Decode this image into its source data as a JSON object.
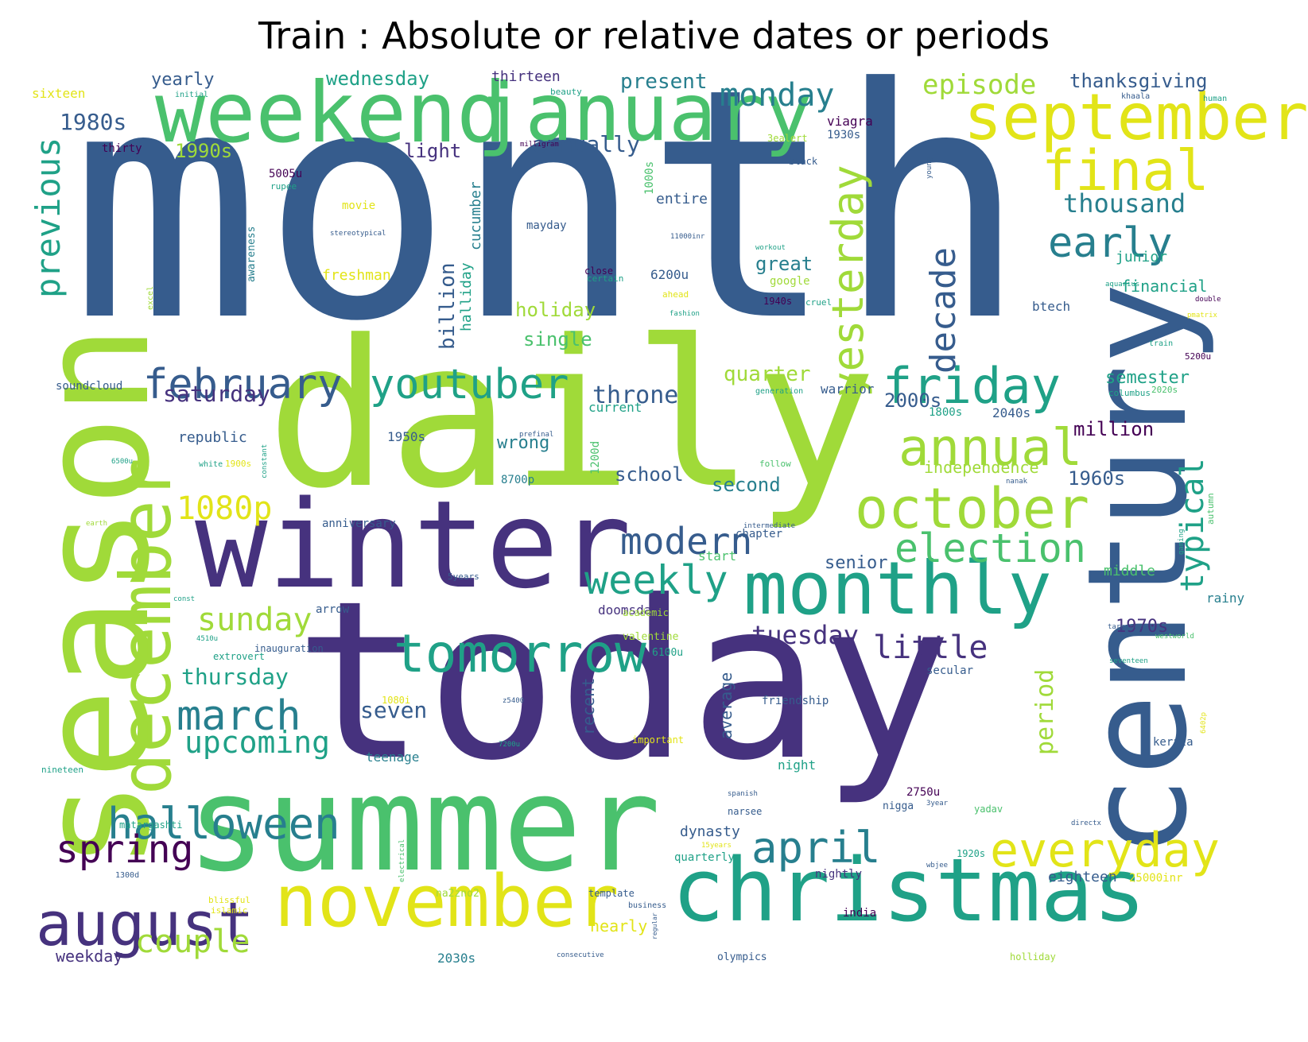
{
  "title": "Train : Absolute or relative dates or periods",
  "palette": {
    "purple": "#46327e",
    "darkblue": "#365c8d",
    "blue": "#277f8e",
    "teal": "#1fa187",
    "green": "#4ac16d",
    "lime": "#a0da39",
    "yellow": "#e2e418",
    "dark": "#440154"
  },
  "words": [
    {
      "t": "month",
      "c": "darkblue"
    },
    {
      "t": "daily",
      "c": "lime"
    },
    {
      "t": "today",
      "c": "purple"
    },
    {
      "t": "season",
      "c": "lime"
    },
    {
      "t": "summer",
      "c": "green"
    },
    {
      "t": "century",
      "c": "darkblue"
    },
    {
      "t": "winter",
      "c": "purple"
    },
    {
      "t": "weekend",
      "c": "green"
    },
    {
      "t": "christmas",
      "c": "teal"
    },
    {
      "t": "january",
      "c": "green"
    },
    {
      "t": "september",
      "c": "yellow"
    },
    {
      "t": "december",
      "c": "lime"
    },
    {
      "t": "november",
      "c": "yellow"
    },
    {
      "t": "monthly",
      "c": "teal"
    },
    {
      "t": "august",
      "c": "purple"
    },
    {
      "t": "tomorrow",
      "c": "teal"
    },
    {
      "t": "october",
      "c": "lime"
    },
    {
      "t": "february",
      "c": "darkblue"
    },
    {
      "t": "youtuber",
      "c": "teal"
    },
    {
      "t": "friday",
      "c": "teal"
    },
    {
      "t": "annual",
      "c": "lime"
    },
    {
      "t": "final",
      "c": "yellow"
    },
    {
      "t": "everyday",
      "c": "yellow"
    },
    {
      "t": "yesterday",
      "c": "lime"
    },
    {
      "t": "halloween",
      "c": "blue"
    },
    {
      "t": "election",
      "c": "green"
    },
    {
      "t": "decade",
      "c": "darkblue"
    },
    {
      "t": "previous",
      "c": "teal"
    },
    {
      "t": "early",
      "c": "blue"
    },
    {
      "t": "april",
      "c": "blue"
    },
    {
      "t": "march",
      "c": "blue"
    },
    {
      "t": "spring",
      "c": "dark"
    },
    {
      "t": "modern",
      "c": "darkblue"
    },
    {
      "t": "weekly",
      "c": "teal"
    },
    {
      "t": "1080p",
      "c": "yellow"
    },
    {
      "t": "upcoming",
      "c": "teal"
    },
    {
      "t": "sunday",
      "c": "lime"
    },
    {
      "t": "couple",
      "c": "lime"
    },
    {
      "t": "little",
      "c": "purple"
    },
    {
      "t": "typical",
      "c": "teal"
    },
    {
      "t": "monday",
      "c": "blue"
    },
    {
      "t": "thousand",
      "c": "blue"
    },
    {
      "t": "episode",
      "c": "lime"
    },
    {
      "t": "1980s",
      "c": "darkblue"
    },
    {
      "t": "tuesday",
      "c": "purple"
    },
    {
      "t": "period",
      "c": "lime"
    },
    {
      "t": "throne",
      "c": "darkblue"
    },
    {
      "t": "saturday",
      "c": "purple"
    },
    {
      "t": "thursday",
      "c": "teal"
    },
    {
      "t": "seven",
      "c": "darkblue"
    },
    {
      "t": "annually",
      "c": "darkblue"
    },
    {
      "t": "thanksgiving",
      "c": "darkblue"
    },
    {
      "t": "present",
      "c": "blue"
    },
    {
      "t": "quarter",
      "c": "lime"
    },
    {
      "t": "wednesday",
      "c": "teal"
    },
    {
      "t": "2000s",
      "c": "darkblue"
    },
    {
      "t": "semester",
      "c": "teal"
    },
    {
      "t": "million",
      "c": "dark"
    },
    {
      "t": "1960s",
      "c": "darkblue"
    },
    {
      "t": "1970s",
      "c": "purple"
    },
    {
      "t": "holiday",
      "c": "lime"
    },
    {
      "t": "single",
      "c": "green"
    },
    {
      "t": "billion",
      "c": "darkblue"
    },
    {
      "t": "school",
      "c": "darkblue"
    },
    {
      "t": "second",
      "c": "blue"
    },
    {
      "t": "yearly",
      "c": "darkblue"
    },
    {
      "t": "1990s",
      "c": "lime"
    },
    {
      "t": "light",
      "c": "purple"
    },
    {
      "t": "great",
      "c": "blue"
    },
    {
      "t": "senior",
      "c": "darkblue"
    },
    {
      "t": "wrong",
      "c": "blue"
    },
    {
      "t": "financial",
      "c": "teal"
    },
    {
      "t": "thirteen",
      "c": "purple"
    },
    {
      "t": "independence",
      "c": "lime"
    },
    {
      "t": "nearly",
      "c": "yellow"
    },
    {
      "t": "weekday",
      "c": "purple"
    },
    {
      "t": "dynasty",
      "c": "darkblue"
    },
    {
      "t": "eighteen",
      "c": "darkblue"
    },
    {
      "t": "average",
      "c": "darkblue"
    },
    {
      "t": "recent",
      "c": "darkblue"
    },
    {
      "t": "cucumber",
      "c": "blue"
    },
    {
      "t": "republic",
      "c": "darkblue"
    },
    {
      "t": "freshman",
      "c": "yellow"
    },
    {
      "t": "1950s",
      "c": "darkblue"
    },
    {
      "t": "2030s",
      "c": "blue"
    },
    {
      "t": "junior",
      "c": "teal"
    },
    {
      "t": "middle",
      "c": "green"
    },
    {
      "t": "btech",
      "c": "darkblue"
    },
    {
      "t": "entire",
      "c": "darkblue"
    },
    {
      "t": "rainy",
      "c": "blue"
    },
    {
      "t": "doomsday",
      "c": "purple"
    },
    {
      "t": "teenage",
      "c": "blue"
    },
    {
      "t": "sixteen",
      "c": "yellow"
    },
    {
      "t": "thirty",
      "c": "dark"
    },
    {
      "t": "warrior",
      "c": "darkblue"
    },
    {
      "t": "2040s",
      "c": "darkblue"
    },
    {
      "t": "halliday",
      "c": "teal"
    },
    {
      "t": "6200u",
      "c": "darkblue"
    },
    {
      "t": "current",
      "c": "teal"
    },
    {
      "t": "chapter",
      "c": "darkblue"
    },
    {
      "t": "start",
      "c": "green"
    },
    {
      "t": "night",
      "c": "teal"
    },
    {
      "t": "quarterly",
      "c": "teal"
    },
    {
      "t": "nightly",
      "c": "purple"
    },
    {
      "t": "viagra",
      "c": "dark"
    },
    {
      "t": "1930s",
      "c": "darkblue"
    },
    {
      "t": "black",
      "c": "darkblue"
    },
    {
      "t": "3ealert",
      "c": "lime"
    },
    {
      "t": "5005u",
      "c": "dark"
    },
    {
      "t": "1000s",
      "c": "green"
    },
    {
      "t": "mayday",
      "c": "darkblue"
    },
    {
      "t": "movie",
      "c": "yellow"
    },
    {
      "t": "awareness",
      "c": "blue"
    },
    {
      "t": "soundcloud",
      "c": "darkblue"
    },
    {
      "t": "anniversary",
      "c": "darkblue"
    },
    {
      "t": "8700p",
      "c": "blue"
    },
    {
      "t": "1200d",
      "c": "green"
    },
    {
      "t": "google",
      "c": "lime"
    },
    {
      "t": "1940s",
      "c": "dark"
    },
    {
      "t": "secular",
      "c": "darkblue"
    },
    {
      "t": "friendship",
      "c": "darkblue"
    },
    {
      "t": "kerala",
      "c": "darkblue"
    },
    {
      "t": "2750u",
      "c": "dark"
    },
    {
      "t": "nigga",
      "c": "darkblue"
    },
    {
      "t": "1800s",
      "c": "teal"
    },
    {
      "t": "1920s",
      "c": "teal"
    },
    {
      "t": "na2zno2",
      "c": "lime"
    },
    {
      "t": "25000inr",
      "c": "yellow"
    },
    {
      "t": "india",
      "c": "dark"
    },
    {
      "t": "inauguration",
      "c": "darkblue"
    },
    {
      "t": "extrovert",
      "c": "teal"
    },
    {
      "t": "arrow",
      "c": "darkblue"
    },
    {
      "t": "valentine",
      "c": "lime"
    },
    {
      "t": "6100u",
      "c": "teal"
    },
    {
      "t": "narsee",
      "c": "darkblue"
    },
    {
      "t": "matargashti",
      "c": "teal"
    },
    {
      "t": "olympics",
      "c": "darkblue"
    },
    {
      "t": "template",
      "c": "darkblue"
    },
    {
      "t": "holliday",
      "c": "lime"
    },
    {
      "t": "yadav",
      "c": "green"
    },
    {
      "t": "academic",
      "c": "lime"
    },
    {
      "t": "important",
      "c": "yellow"
    },
    {
      "t": "1080i",
      "c": "yellow"
    },
    {
      "t": "1900s",
      "c": "yellow"
    },
    {
      "t": "close",
      "c": "dark"
    },
    {
      "t": "certain",
      "c": "teal"
    },
    {
      "t": "ahead",
      "c": "yellow"
    },
    {
      "t": "cruel",
      "c": "teal"
    },
    {
      "t": "columbus",
      "c": "teal"
    },
    {
      "t": "autumn",
      "c": "green"
    },
    {
      "t": "5200u",
      "c": "dark"
    },
    {
      "t": "2020s",
      "c": "green"
    },
    {
      "t": "westworld",
      "c": "green"
    },
    {
      "t": "seventeen",
      "c": "teal"
    },
    {
      "t": "targaryen",
      "c": "darkblue"
    },
    {
      "t": "gaming",
      "c": "teal"
    },
    {
      "t": "double",
      "c": "dark"
    },
    {
      "t": "pmatrix",
      "c": "yellow"
    },
    {
      "t": "aquarius",
      "c": "teal"
    },
    {
      "t": "train",
      "c": "teal"
    },
    {
      "t": "khaala",
      "c": "darkblue"
    },
    {
      "t": "human",
      "c": "teal"
    },
    {
      "t": "young",
      "c": "darkblue"
    },
    {
      "t": "beauty",
      "c": "teal"
    },
    {
      "t": "initial",
      "c": "teal"
    },
    {
      "t": "milligram",
      "c": "dark"
    },
    {
      "t": "rupee",
      "c": "teal"
    },
    {
      "t": "stereotypical",
      "c": "darkblue"
    },
    {
      "t": "11000inr",
      "c": "darkblue"
    },
    {
      "t": "workout",
      "c": "teal"
    },
    {
      "t": "fashion",
      "c": "teal"
    },
    {
      "t": "excel",
      "c": "lime"
    },
    {
      "t": "generation",
      "c": "teal"
    },
    {
      "t": "prefinal",
      "c": "darkblue"
    },
    {
      "t": "constant",
      "c": "teal"
    },
    {
      "t": "6500u",
      "c": "teal"
    },
    {
      "t": "white",
      "c": "teal"
    },
    {
      "t": "follow",
      "c": "green"
    },
    {
      "t": "nanak",
      "c": "darkblue"
    },
    {
      "t": "intermediate",
      "c": "darkblue"
    },
    {
      "t": "earth",
      "c": "lime"
    },
    {
      "t": "5years",
      "c": "darkblue"
    },
    {
      "t": "const",
      "c": "teal"
    },
    {
      "t": "4510u",
      "c": "teal"
    },
    {
      "t": "z5400",
      "c": "darkblue"
    },
    {
      "t": "7200u",
      "c": "teal"
    },
    {
      "t": "nineteen",
      "c": "teal"
    },
    {
      "t": "spanish",
      "c": "darkblue"
    },
    {
      "t": "3year",
      "c": "darkblue"
    },
    {
      "t": "directx",
      "c": "darkblue"
    },
    {
      "t": "6402p",
      "c": "yellow"
    },
    {
      "t": "15years",
      "c": "yellow"
    },
    {
      "t": "wbjee",
      "c": "darkblue"
    },
    {
      "t": "electrical",
      "c": "green"
    },
    {
      "t": "1300d",
      "c": "darkblue"
    },
    {
      "t": "blissful",
      "c": "yellow"
    },
    {
      "t": "islamic",
      "c": "yellow"
    },
    {
      "t": "business",
      "c": "darkblue"
    },
    {
      "t": "regular",
      "c": "darkblue"
    },
    {
      "t": "consecutive",
      "c": "darkblue"
    }
  ]
}
